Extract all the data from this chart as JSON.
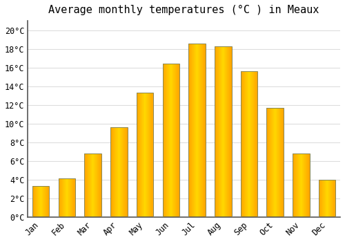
{
  "title": "Average monthly temperatures (°C ) in Meaux",
  "months": [
    "Jan",
    "Feb",
    "Mar",
    "Apr",
    "May",
    "Jun",
    "Jul",
    "Aug",
    "Sep",
    "Oct",
    "Nov",
    "Dec"
  ],
  "values": [
    3.3,
    4.1,
    6.8,
    9.6,
    13.3,
    16.4,
    18.6,
    18.3,
    15.6,
    11.7,
    6.8,
    4.0
  ],
  "bar_color_center": "#FFD700",
  "bar_color_edge": "#FFA500",
  "bar_border_color": "#888855",
  "ylim": [
    0,
    21
  ],
  "yticks": [
    0,
    2,
    4,
    6,
    8,
    10,
    12,
    14,
    16,
    18,
    20
  ],
  "background_color": "#FFFFFF",
  "grid_color": "#DDDDDD",
  "title_fontsize": 11,
  "tick_fontsize": 8.5,
  "font_family": "monospace"
}
